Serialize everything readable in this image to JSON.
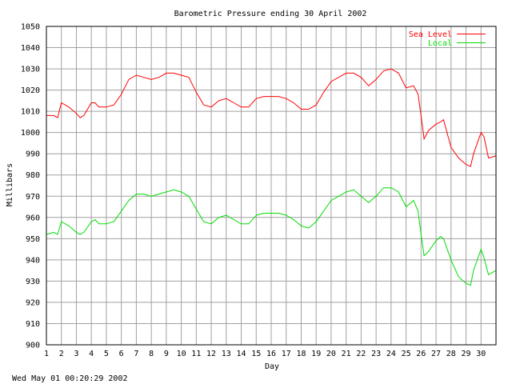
{
  "chart_data": {
    "type": "line",
    "title": "Barometric Pressure ending 30 April 2002",
    "xlabel": "Day",
    "ylabel": "Millibars",
    "xlim": [
      1,
      31
    ],
    "ylim": [
      900,
      1050
    ],
    "grid": true,
    "legend_position": "top-right",
    "x_ticks": [
      "1",
      "2",
      "3",
      "4",
      "5",
      "6",
      "7",
      "8",
      "9",
      "10",
      "11",
      "12",
      "13",
      "14",
      "15",
      "16",
      "17",
      "18",
      "19",
      "20",
      "21",
      "22",
      "23",
      "24",
      "25",
      "26",
      "27",
      "28",
      "29",
      "30"
    ],
    "y_ticks": [
      "900",
      "910",
      "920",
      "930",
      "940",
      "950",
      "960",
      "970",
      "980",
      "990",
      "1000",
      "1010",
      "1020",
      "1030",
      "1040",
      "1050"
    ],
    "series": [
      {
        "name": "Sea Level",
        "color": "#ff0000",
        "x": [
          1.0,
          1.5,
          1.75,
          2.0,
          2.5,
          3.0,
          3.25,
          3.5,
          4.0,
          4.25,
          4.5,
          5.0,
          5.5,
          6.0,
          6.5,
          7.0,
          7.5,
          8.0,
          8.5,
          9.0,
          9.5,
          10.0,
          10.5,
          11.0,
          11.5,
          12.0,
          12.5,
          13.0,
          13.5,
          14.0,
          14.5,
          15.0,
          15.5,
          16.0,
          16.5,
          17.0,
          17.5,
          18.0,
          18.5,
          19.0,
          19.5,
          20.0,
          20.5,
          21.0,
          21.5,
          22.0,
          22.5,
          23.0,
          23.5,
          24.0,
          24.5,
          25.0,
          25.5,
          25.8,
          26.0,
          26.2,
          26.5,
          27.0,
          27.3,
          27.5,
          28.0,
          28.5,
          29.0,
          29.3,
          29.5,
          30.0,
          30.2,
          30.5,
          31.0
        ],
        "y": [
          1008,
          1008,
          1007,
          1014,
          1012,
          1009,
          1007,
          1008,
          1014,
          1014,
          1012,
          1012,
          1013,
          1018,
          1025,
          1027,
          1026,
          1025,
          1026,
          1028,
          1028,
          1027,
          1026,
          1019,
          1013,
          1012,
          1015,
          1016,
          1014,
          1012,
          1012,
          1016,
          1017,
          1017,
          1017,
          1016,
          1014,
          1011,
          1011,
          1013,
          1019,
          1024,
          1026,
          1028,
          1028,
          1026,
          1022,
          1025,
          1029,
          1030,
          1028,
          1021,
          1022,
          1018,
          1008,
          997,
          1001,
          1004,
          1005,
          1006,
          993,
          988,
          985,
          984,
          990,
          1000,
          998,
          988,
          989
        ]
      },
      {
        "name": "Local",
        "color": "#00dd00",
        "x": [
          1.0,
          1.5,
          1.75,
          2.0,
          2.5,
          3.0,
          3.25,
          3.5,
          4.0,
          4.25,
          4.5,
          5.0,
          5.5,
          6.0,
          6.5,
          7.0,
          7.5,
          8.0,
          8.5,
          9.0,
          9.5,
          10.0,
          10.5,
          11.0,
          11.5,
          12.0,
          12.5,
          13.0,
          13.5,
          14.0,
          14.5,
          15.0,
          15.5,
          16.0,
          16.5,
          17.0,
          17.5,
          18.0,
          18.5,
          19.0,
          19.5,
          20.0,
          20.5,
          21.0,
          21.5,
          22.0,
          22.5,
          23.0,
          23.5,
          24.0,
          24.5,
          25.0,
          25.5,
          25.8,
          26.0,
          26.2,
          26.5,
          27.0,
          27.3,
          27.5,
          28.0,
          28.5,
          29.0,
          29.3,
          29.5,
          30.0,
          30.2,
          30.5,
          31.0
        ],
        "y": [
          952,
          953,
          952,
          958,
          956,
          953,
          952,
          953,
          958,
          959,
          957,
          957,
          958,
          963,
          968,
          971,
          971,
          970,
          971,
          972,
          973,
          972,
          970,
          964,
          958,
          957,
          960,
          961,
          959,
          957,
          957,
          961,
          962,
          962,
          962,
          961,
          959,
          956,
          955,
          958,
          963,
          968,
          970,
          972,
          973,
          970,
          967,
          970,
          974,
          974,
          972,
          965,
          968,
          963,
          952,
          942,
          944,
          949,
          951,
          950,
          940,
          932,
          929,
          928,
          935,
          945,
          941,
          933,
          935
        ]
      }
    ]
  },
  "timestamp": "Wed May 01 00:20:29 2002"
}
